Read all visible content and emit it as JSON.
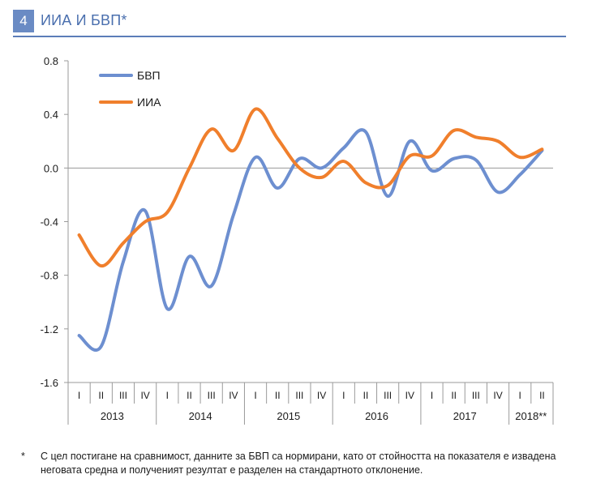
{
  "header": {
    "number": "4",
    "title": "ИИА И БВП*"
  },
  "chart_data": {
    "type": "line",
    "title": "ИИА И БВП*",
    "ylim": [
      -1.6,
      0.8
    ],
    "yticks": [
      0.8,
      0.4,
      0.0,
      -0.4,
      -0.8,
      -1.2,
      -1.6
    ],
    "ytick_labels": [
      "0.8",
      "0.4",
      "0.0",
      "-0.4",
      "-0.8",
      "-1.2",
      "-1.6"
    ],
    "quarter_labels": [
      "I",
      "II",
      "III",
      "IV",
      "I",
      "II",
      "III",
      "IV",
      "I",
      "II",
      "III",
      "IV",
      "I",
      "II",
      "III",
      "IV",
      "I",
      "II",
      "III",
      "IV",
      "I",
      "II"
    ],
    "years": [
      {
        "label": "2013",
        "count": 4
      },
      {
        "label": "2014",
        "count": 4
      },
      {
        "label": "2015",
        "count": 4
      },
      {
        "label": "2016",
        "count": 4
      },
      {
        "label": "2017",
        "count": 4
      },
      {
        "label": "2018**",
        "count": 2
      }
    ],
    "legend_position": "top-left",
    "series": [
      {
        "name": "БВП",
        "color": "#6d8fd0",
        "values": [
          -1.25,
          -1.33,
          -0.7,
          -0.32,
          -1.05,
          -0.66,
          -0.88,
          -0.35,
          0.08,
          -0.15,
          0.07,
          0.0,
          0.15,
          0.27,
          -0.21,
          0.2,
          -0.02,
          0.07,
          0.06,
          -0.18,
          -0.05,
          0.13
        ]
      },
      {
        "name": "ИИА",
        "color": "#f07f2c",
        "values": [
          -0.5,
          -0.73,
          -0.56,
          -0.4,
          -0.33,
          0.0,
          0.29,
          0.13,
          0.44,
          0.22,
          0.0,
          -0.07,
          0.05,
          -0.11,
          -0.13,
          0.09,
          0.09,
          0.28,
          0.23,
          0.2,
          0.08,
          0.14
        ]
      }
    ]
  },
  "footnote": {
    "mark": "*",
    "text": "С цел постигане на сравнимост, данните за БВП са нормирани, като от стойността на показателя е извадена неговата средна и полученият резултат е разделен на стандартното отклонение."
  }
}
